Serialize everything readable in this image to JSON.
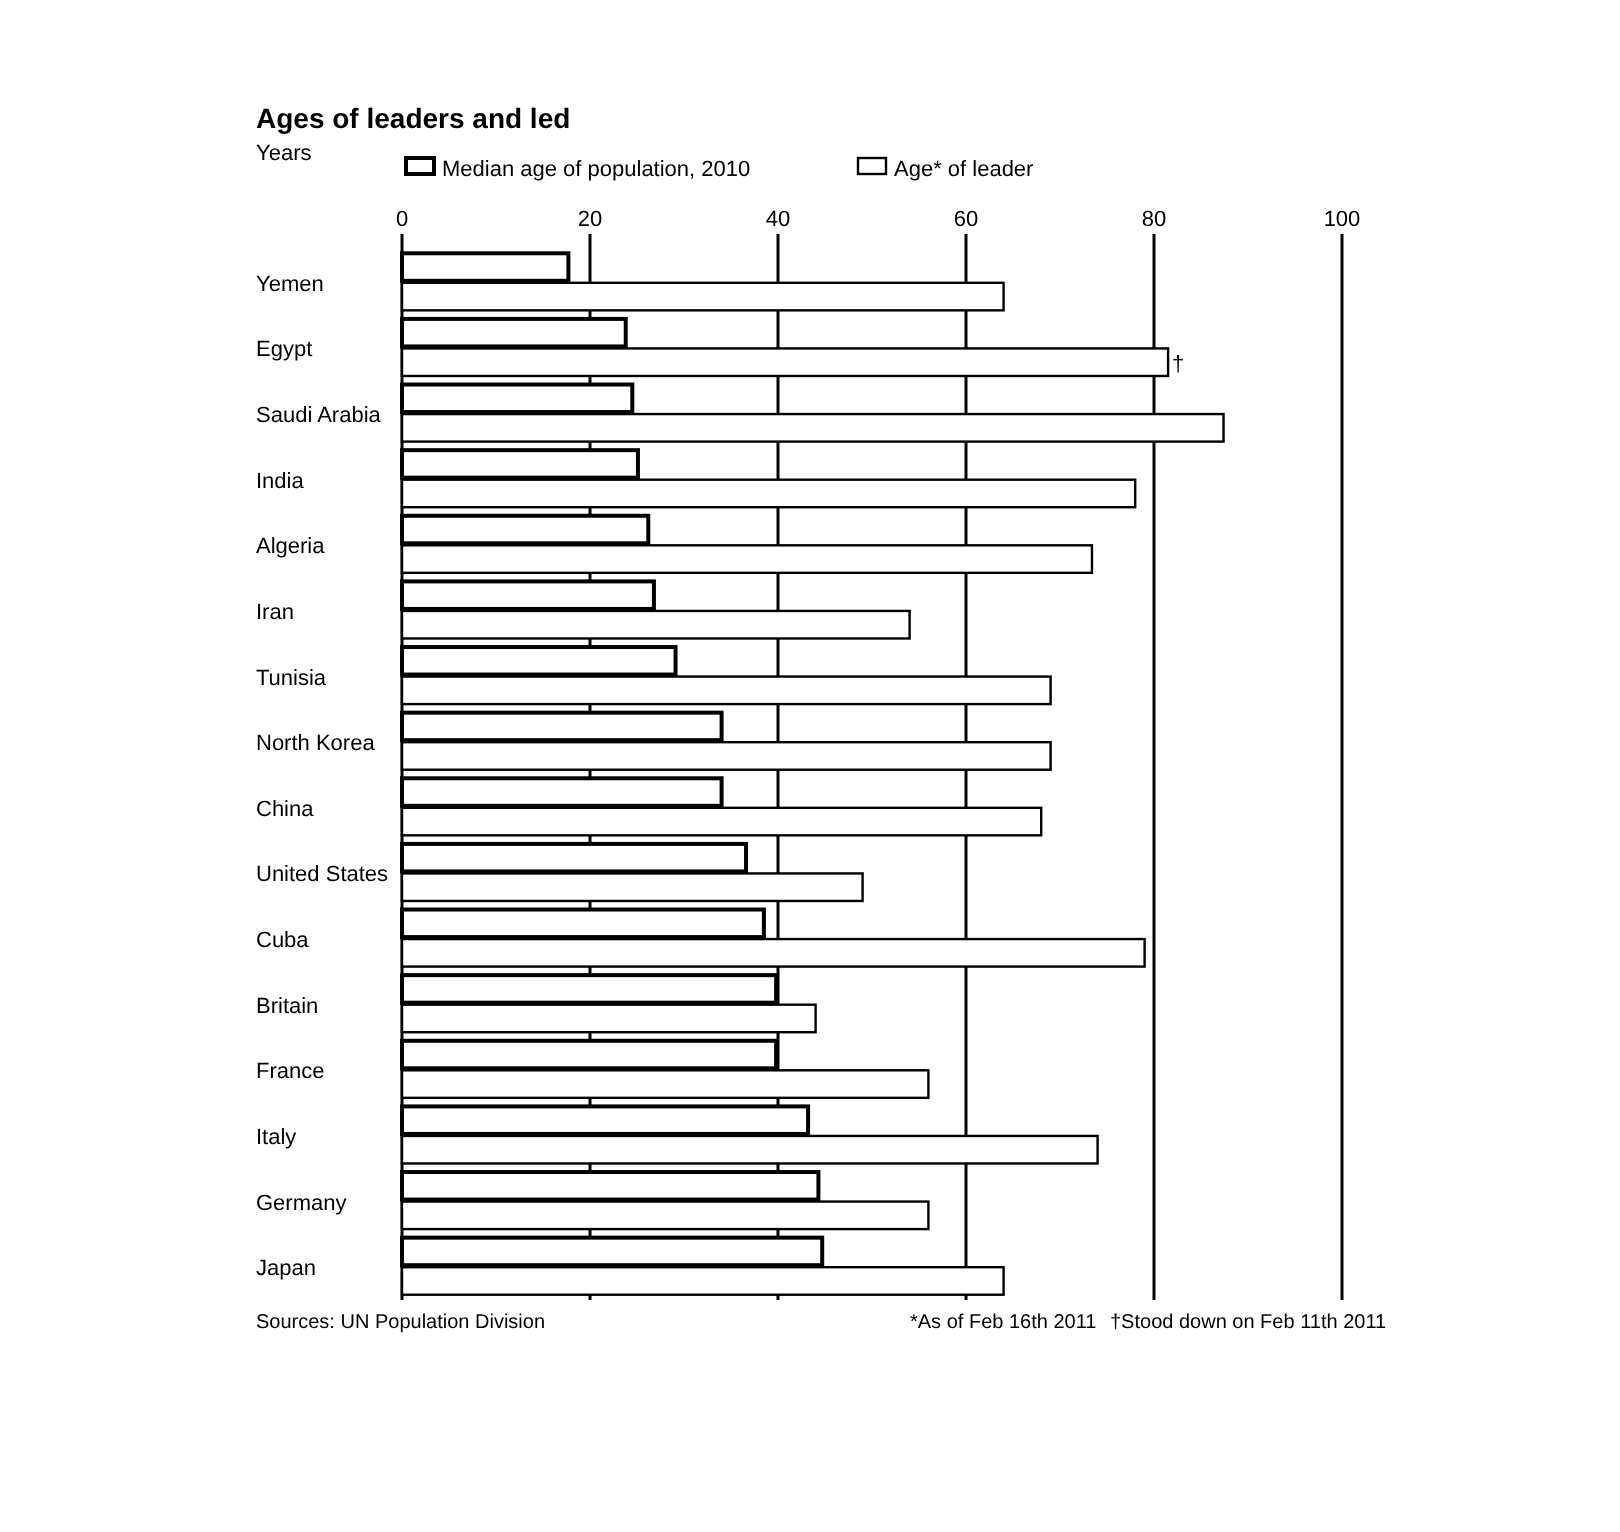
{
  "chart_data": {
    "type": "bar",
    "orientation": "horizontal",
    "title": "Ages of leaders and led",
    "subtitle": "Years",
    "categories": [
      "Yemen",
      "Egypt",
      "Saudi Arabia",
      "India",
      "Algeria",
      "Iran",
      "Tunisia",
      "North Korea",
      "China",
      "United States",
      "Cuba",
      "Britain",
      "France",
      "Italy",
      "Germany",
      "Japan"
    ],
    "series": [
      {
        "name": "Median age of population, 2010",
        "color": "#ffffff",
        "values": [
          17.7,
          23.8,
          24.5,
          25.1,
          26.2,
          26.8,
          29.1,
          34,
          34,
          36.6,
          38.5,
          39.8,
          39.8,
          43.2,
          44.3,
          44.7
        ]
      },
      {
        "name": "Age* of leader",
        "color": "#ffffff",
        "values": [
          64,
          81.5,
          87.4,
          78,
          73.4,
          54,
          69,
          69,
          68,
          49,
          79,
          44,
          56,
          74,
          56,
          64
        ]
      }
    ],
    "xlim": [
      0,
      100
    ],
    "xticks": [
      0,
      20,
      40,
      60,
      80,
      100
    ],
    "grid": "x",
    "legend": "top",
    "annotations": [
      {
        "text": "†",
        "x": 81.5,
        "y": "Egypt"
      },
      "Sources: UN Population Division",
      "*As of Feb 16th 2011",
      "†Stood down on Feb 11th 2011"
    ]
  }
}
